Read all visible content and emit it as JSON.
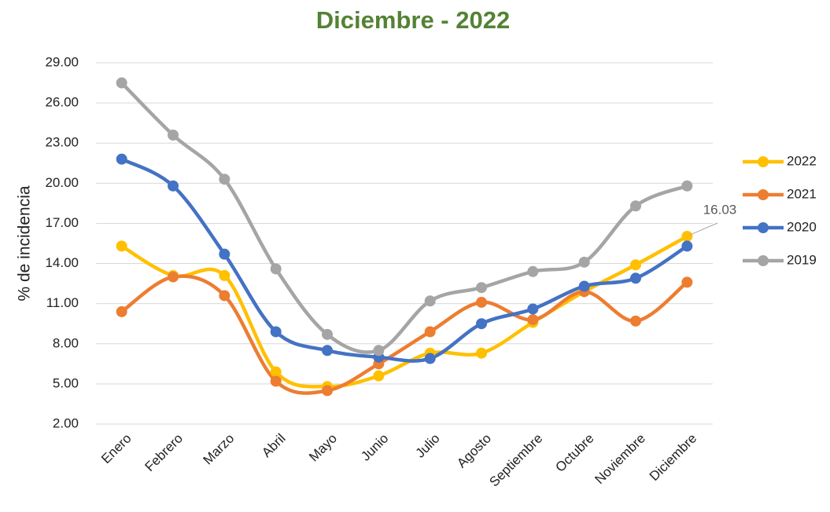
{
  "chart_data": {
    "type": "line",
    "title": "Diciembre - 2022",
    "y_label": "% de incidencia",
    "categories": [
      "Enero",
      "Febrero",
      "Marzo",
      "Abril",
      "Mayo",
      "Junio",
      "Julio",
      "Agosto",
      "Septiembre",
      "Octubre",
      "Noviembre",
      "Diciembre"
    ],
    "series": [
      {
        "name": "2022",
        "color": "#ffc000",
        "values": [
          15.3,
          13.1,
          13.1,
          5.9,
          4.8,
          5.6,
          7.3,
          7.3,
          9.6,
          11.9,
          13.9,
          16.03
        ]
      },
      {
        "name": "2021",
        "color": "#ed7d31",
        "values": [
          10.4,
          13.0,
          11.6,
          5.2,
          4.5,
          6.5,
          8.9,
          11.1,
          9.8,
          11.9,
          9.7,
          12.6
        ]
      },
      {
        "name": "2020",
        "color": "#4472c4",
        "values": [
          21.8,
          19.8,
          14.7,
          8.9,
          7.5,
          7.0,
          6.9,
          9.5,
          10.6,
          12.3,
          12.9,
          15.3
        ]
      },
      {
        "name": "2019",
        "color": "#a5a5a5",
        "values": [
          27.5,
          23.6,
          20.3,
          13.6,
          8.7,
          7.5,
          11.2,
          12.2,
          13.4,
          14.1,
          18.3,
          19.8
        ]
      }
    ],
    "ylim": [
      2,
      29
    ],
    "yticks": [
      {
        "value": 2,
        "label": "2.00"
      },
      {
        "value": 5,
        "label": "5.00"
      },
      {
        "value": 8,
        "label": "8.00"
      },
      {
        "value": 11,
        "label": "11.00"
      },
      {
        "value": 14,
        "label": "14.00"
      },
      {
        "value": 17,
        "label": "17.00"
      },
      {
        "value": 20,
        "label": "20.00"
      },
      {
        "value": 23,
        "label": "23.00"
      },
      {
        "value": 26,
        "label": "26.00"
      },
      {
        "value": 29,
        "label": "29.00"
      }
    ],
    "grid": true,
    "legend": "right",
    "smooth": true
  }
}
